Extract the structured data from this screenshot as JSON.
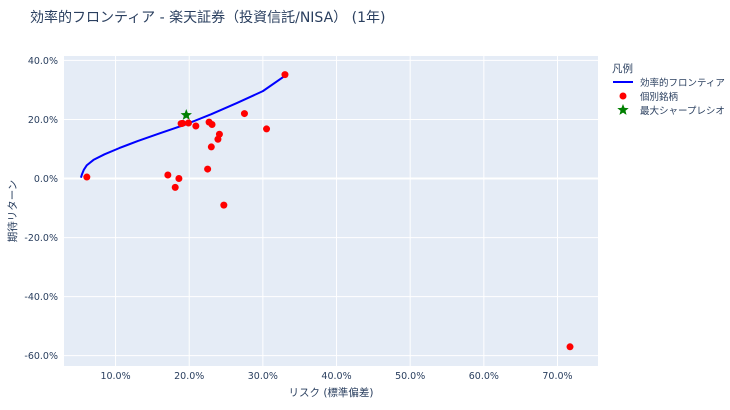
{
  "chart_data": {
    "type": "scatter",
    "title": "効率的フロンティア - 楽天証券（投資信託/NISA） (1年)",
    "xlabel": "リスク (標準偏差)",
    "ylabel": "期待リターン",
    "xlim": [
      3.0,
      75.5
    ],
    "ylim": [
      -63.5,
      41.5
    ],
    "xticks": [
      10,
      20,
      30,
      40,
      50,
      60,
      70
    ],
    "xtick_labels": [
      "10.0%",
      "20.0%",
      "30.0%",
      "40.0%",
      "50.0%",
      "60.0%",
      "70.0%"
    ],
    "yticks": [
      -60,
      -40,
      -20,
      0,
      20,
      40
    ],
    "ytick_labels": [
      "-60.0%",
      "-40.0%",
      "-20.0%",
      "0.0%",
      "20.0%",
      "40.0%"
    ],
    "grid": true,
    "legend": {
      "title": "凡例",
      "position": "top-right",
      "entries": [
        "効率的フロンティア",
        "個別銘柄",
        "最大シャープレシオ"
      ]
    },
    "series": [
      {
        "name": "効率的フロンティア",
        "kind": "line",
        "color": "#0000ff",
        "x": [
          5.3,
          5.45,
          5.7,
          6.1,
          7.0,
          8.5,
          10.5,
          13.0,
          16.0,
          19.5,
          23.0,
          26.5,
          30.0,
          33.0
        ],
        "y": [
          0.3,
          1.5,
          3.0,
          4.5,
          6.3,
          8.2,
          10.3,
          12.7,
          15.3,
          18.3,
          21.8,
          25.6,
          29.6,
          34.8
        ]
      },
      {
        "name": "個別銘柄",
        "kind": "markers",
        "color": "#ff0000",
        "x": [
          6.1,
          17.1,
          18.1,
          18.6,
          18.9,
          19.1,
          19.9,
          20.9,
          22.5,
          22.7,
          23.1,
          23.0,
          23.9,
          24.1,
          24.7,
          27.5,
          30.5,
          33.0,
          71.7
        ],
        "y": [
          0.5,
          1.2,
          -3.0,
          0.0,
          18.6,
          18.7,
          18.8,
          17.8,
          3.2,
          19.1,
          18.3,
          10.7,
          13.3,
          15.0,
          -9.0,
          22.0,
          16.8,
          35.2,
          -57.0
        ]
      },
      {
        "name": "最大シャープレシオ",
        "kind": "star",
        "color": "#008000",
        "x": [
          19.6
        ],
        "y": [
          21.5
        ]
      }
    ]
  }
}
